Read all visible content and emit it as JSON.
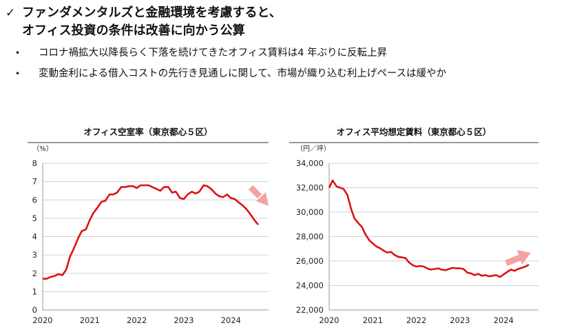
{
  "header": {
    "check_icon": "✓",
    "line1": "ファンダメンタルズと金融環境を考慮すると、",
    "line2": "オフィス投資の条件は改善に向かう公算"
  },
  "bullets": [
    {
      "icon": "•",
      "text": "コロナ禍拡大以降長らく下落を続けてきたオフィス賃料は4 年ぶりに反転上昇"
    },
    {
      "icon": "•",
      "text": "変動金利による借入コストの先行き見通しに関して、市場が織り込む利上げペースは緩やか"
    }
  ],
  "colors": {
    "line": "#dd1111",
    "arrow": "#f4a3a3",
    "grid": "#d0d0d0",
    "axis": "#999999"
  },
  "chart_data": [
    {
      "type": "line",
      "title": "オフィス空室率（東京都心５区）",
      "unit": "（%）",
      "xlabel": "",
      "ylabel": "（%）",
      "ylim": [
        0,
        8
      ],
      "yticks": [
        0,
        1,
        2,
        3,
        4,
        5,
        6,
        7,
        8
      ],
      "ytick_labels": [
        "0",
        "1",
        "2",
        "3",
        "4",
        "5",
        "6",
        "7",
        "8"
      ],
      "xlim": [
        2020,
        2024.8
      ],
      "xticks": [
        2020,
        2021,
        2022,
        2023,
        2024
      ],
      "xtick_labels": [
        "2020",
        "2021",
        "2022",
        "2023",
        "2024"
      ],
      "annotation": "down-arrow",
      "series": [
        {
          "name": "空室率",
          "x": [
            2020.0,
            2020.08,
            2020.17,
            2020.25,
            2020.33,
            2020.42,
            2020.5,
            2020.58,
            2020.67,
            2020.75,
            2020.83,
            2020.92,
            2021.0,
            2021.08,
            2021.17,
            2021.25,
            2021.33,
            2021.42,
            2021.5,
            2021.58,
            2021.67,
            2021.75,
            2021.83,
            2021.92,
            2022.0,
            2022.08,
            2022.17,
            2022.25,
            2022.33,
            2022.42,
            2022.5,
            2022.58,
            2022.67,
            2022.75,
            2022.83,
            2022.92,
            2023.0,
            2023.08,
            2023.17,
            2023.25,
            2023.33,
            2023.42,
            2023.5,
            2023.58,
            2023.67,
            2023.75,
            2023.83,
            2023.92,
            2024.0,
            2024.08,
            2024.17,
            2024.25,
            2024.33,
            2024.42,
            2024.5,
            2024.58
          ],
          "y": [
            1.7,
            1.7,
            1.8,
            1.85,
            1.95,
            1.9,
            2.2,
            2.9,
            3.4,
            3.9,
            4.3,
            4.4,
            4.9,
            5.3,
            5.6,
            5.9,
            5.95,
            6.3,
            6.3,
            6.4,
            6.7,
            6.7,
            6.75,
            6.75,
            6.65,
            6.8,
            6.8,
            6.8,
            6.7,
            6.6,
            6.5,
            6.7,
            6.7,
            6.4,
            6.45,
            6.1,
            6.05,
            6.3,
            6.45,
            6.35,
            6.45,
            6.8,
            6.75,
            6.6,
            6.35,
            6.2,
            6.15,
            6.3,
            6.1,
            6.05,
            5.85,
            5.7,
            5.5,
            5.2,
            4.9,
            4.65
          ]
        }
      ]
    },
    {
      "type": "line",
      "title": "オフィス平均想定賃料（東京都心５区）",
      "unit": "（円／坪）",
      "xlabel": "",
      "ylabel": "（円／坪）",
      "ylim": [
        22000,
        34000
      ],
      "yticks": [
        22000,
        24000,
        26000,
        28000,
        30000,
        32000,
        34000
      ],
      "ytick_labels": [
        "22,000",
        "24,000",
        "26,000",
        "28,000",
        "30,000",
        "32,000",
        "34,000"
      ],
      "xlim": [
        2020,
        2024.8
      ],
      "xticks": [
        2020,
        2021,
        2022,
        2023,
        2024
      ],
      "xtick_labels": [
        "2020",
        "2021",
        "2022",
        "2023",
        "2024"
      ],
      "annotation": "up-arrow",
      "series": [
        {
          "name": "平均想定賃料",
          "x": [
            2020.0,
            2020.08,
            2020.17,
            2020.25,
            2020.33,
            2020.42,
            2020.5,
            2020.58,
            2020.67,
            2020.75,
            2020.83,
            2020.92,
            2021.0,
            2021.08,
            2021.17,
            2021.25,
            2021.33,
            2021.42,
            2021.5,
            2021.58,
            2021.67,
            2021.75,
            2021.83,
            2021.92,
            2022.0,
            2022.08,
            2022.17,
            2022.25,
            2022.33,
            2022.42,
            2022.5,
            2022.58,
            2022.67,
            2022.75,
            2022.83,
            2022.92,
            2023.0,
            2023.08,
            2023.17,
            2023.25,
            2023.33,
            2023.42,
            2023.5,
            2023.58,
            2023.67,
            2023.75,
            2023.83,
            2023.92,
            2024.0,
            2024.08,
            2024.17,
            2024.25,
            2024.33,
            2024.42,
            2024.5,
            2024.58
          ],
          "y": [
            32000,
            32600,
            32100,
            32000,
            31900,
            31400,
            30300,
            29500,
            29100,
            28800,
            28200,
            27700,
            27450,
            27200,
            27050,
            26850,
            26700,
            26750,
            26500,
            26350,
            26300,
            26250,
            25900,
            25650,
            25550,
            25600,
            25550,
            25400,
            25300,
            25350,
            25400,
            25300,
            25250,
            25350,
            25450,
            25400,
            25400,
            25350,
            25050,
            25000,
            24850,
            24950,
            24800,
            24850,
            24750,
            24800,
            24850,
            24700,
            24900,
            25100,
            25300,
            25200,
            25350,
            25450,
            25550,
            25700
          ]
        }
      ]
    }
  ]
}
